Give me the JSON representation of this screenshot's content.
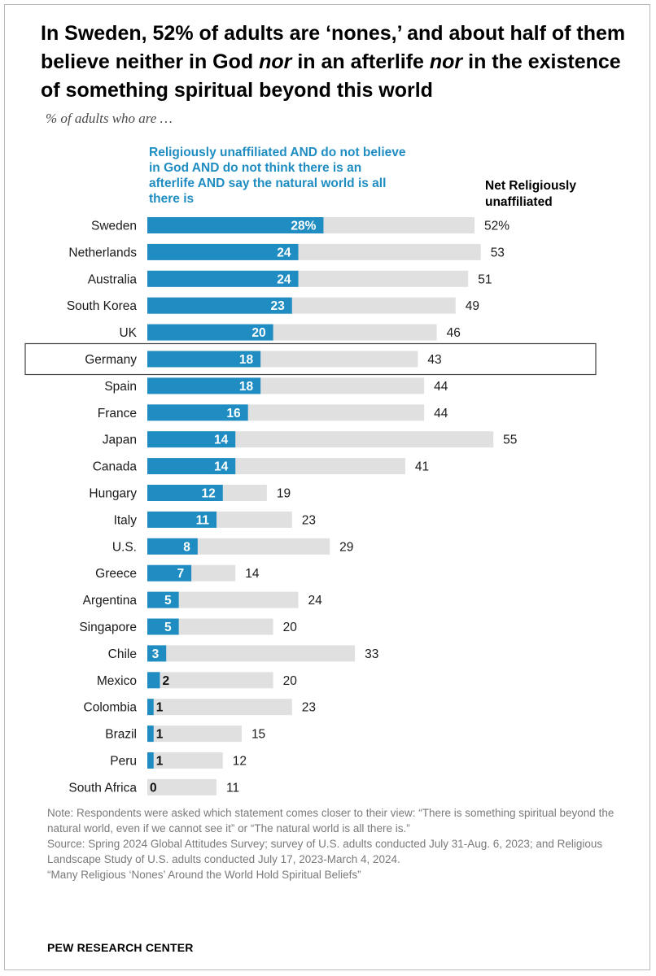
{
  "title": "In Sweden, 52% of adults are ‘nones,’ and about half of them believe neither in God nor in an afterlife nor in the existence of something spiritual beyond this world",
  "subtitle": "% of adults who are …",
  "legend": {
    "blue_series_label": "Religiously unaffiliated AND do not believe in God AND do not think there is an afterlife AND say the natural world is all there is",
    "net_series_label": "Net Religiously unaffiliated"
  },
  "colors": {
    "blue": "#1f8dc2",
    "gray": "#e0e0e0",
    "highlight_border": "#444444"
  },
  "chart_data": {
    "type": "bar",
    "orientation": "horizontal",
    "stacked": false,
    "categories": [
      "Sweden",
      "Netherlands",
      "Australia",
      "South Korea",
      "UK",
      "Germany",
      "Spain",
      "France",
      "Japan",
      "Canada",
      "Hungary",
      "Italy",
      "U.S.",
      "Greece",
      "Argentina",
      "Singapore",
      "Chile",
      "Mexico",
      "Colombia",
      "Brazil",
      "Peru",
      "South Africa"
    ],
    "series": [
      {
        "name": "Religiously unaffiliated AND do not believe in God AND do not think there is an afterlife AND say the natural world is all there is",
        "values": [
          28,
          24,
          24,
          23,
          20,
          18,
          18,
          16,
          14,
          14,
          12,
          11,
          8,
          7,
          5,
          5,
          3,
          2,
          1,
          1,
          1,
          0
        ],
        "color": "#1f8dc2"
      },
      {
        "name": "Net Religiously unaffiliated",
        "values": [
          52,
          53,
          51,
          49,
          46,
          43,
          44,
          44,
          55,
          41,
          19,
          23,
          29,
          14,
          24,
          20,
          33,
          20,
          23,
          15,
          12,
          11
        ],
        "color": "#e0e0e0"
      }
    ],
    "data_labels": {
      "blue": [
        "28%",
        "24",
        "24",
        "23",
        "20",
        "18",
        "18",
        "16",
        "14",
        "14",
        "12",
        "11",
        "8",
        "7",
        "5",
        "5",
        "3",
        "2",
        "1",
        "1",
        "1",
        "0"
      ],
      "net": [
        "52%",
        "53",
        "51",
        "49",
        "46",
        "43",
        "44",
        "44",
        "55",
        "41",
        "19",
        "23",
        "29",
        "14",
        "24",
        "20",
        "33",
        "20",
        "23",
        "15",
        "12",
        "11"
      ]
    },
    "highlighted_category": "Germany",
    "xlim": [
      0,
      55
    ],
    "grid": false
  },
  "notes": {
    "note": "Note: Respondents were asked which statement comes closer to their view: “There is something spiritual beyond the natural world, even if we cannot see it” or “The natural world is all there is.”",
    "source": "Source: Spring 2024 Global Attitudes Survey; survey of U.S. adults conducted July 31-Aug. 6, 2023; and Religious Landscape Study of U.S. adults conducted July 17, 2023-March 4, 2024.",
    "report": "“Many Religious ‘Nones’ Around the World Hold Spiritual Beliefs”"
  },
  "footer": "PEW RESEARCH CENTER"
}
